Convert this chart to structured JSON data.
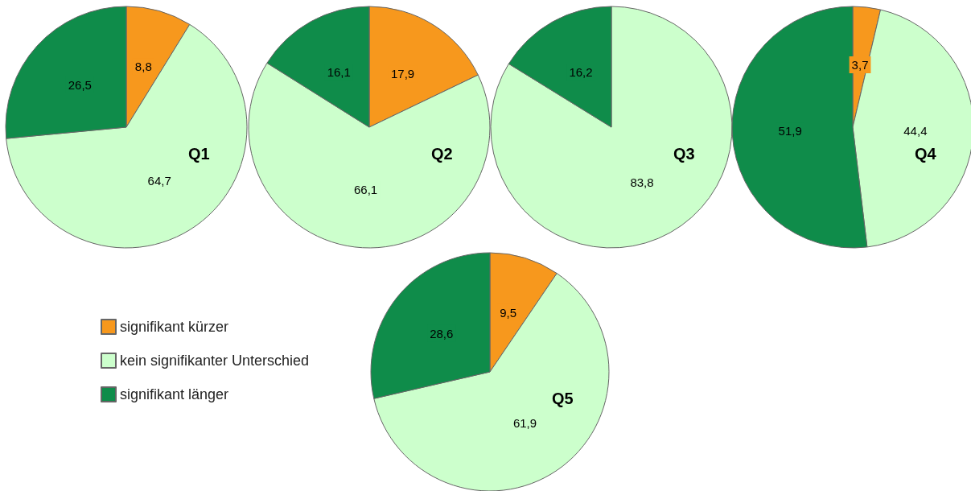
{
  "chart_data": [
    {
      "type": "pie",
      "title": "Q1",
      "categories": [
        null,
        null,
        null
      ],
      "values": [
        8.8,
        64.7,
        26.5
      ],
      "value_labels": [
        "8,8",
        "64,7",
        "26,5"
      ],
      "colors": [
        "#f7981d",
        "#ccffcc",
        "#0f8c4a"
      ]
    },
    {
      "type": "pie",
      "title": "Q2",
      "categories": [
        null,
        null,
        null
      ],
      "values": [
        17.9,
        66.1,
        16.1
      ],
      "value_labels": [
        "17,9",
        "66,1",
        "16,1"
      ],
      "colors": [
        "#f7981d",
        "#ccffcc",
        "#0f8c4a"
      ]
    },
    {
      "type": "pie",
      "title": "Q3",
      "categories": [
        null,
        null,
        null
      ],
      "values": [
        null,
        83.8,
        16.2
      ],
      "value_labels": [
        null,
        "83,8",
        "16,2"
      ],
      "colors": [
        "#f7981d",
        "#ccffcc",
        "#0f8c4a"
      ]
    },
    {
      "type": "pie",
      "title": "Q4",
      "categories": [
        null,
        null,
        null
      ],
      "values": [
        3.7,
        44.4,
        51.9
      ],
      "value_labels": [
        "3,7",
        "44,4",
        "51,9"
      ],
      "colors": [
        "#f7981d",
        "#ccffcc",
        "#0f8c4a"
      ]
    },
    {
      "type": "pie",
      "title": "Q5",
      "categories": [
        "signifikant kürzer",
        "kein signifikanter Unterschied",
        "signifikant länger"
      ],
      "values": [
        9.5,
        61.9,
        28.6
      ],
      "value_labels": [
        "9,5",
        "61,9",
        "28,6"
      ],
      "colors": [
        "#f7981d",
        "#ccffcc",
        "#0f8c4a"
      ],
      "legend": "left"
    }
  ]
}
